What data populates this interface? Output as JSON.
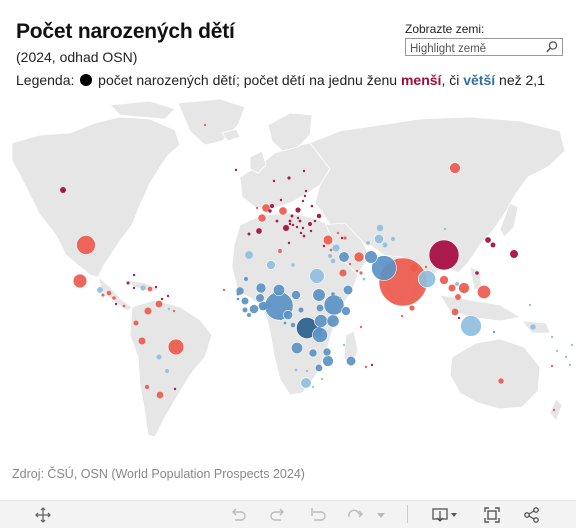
{
  "header": {
    "title": "Počet narozených dětí",
    "subtitle": "(2024, odhad OSN)",
    "legend_prefix": "Legenda:",
    "legend_text1": " počet narozených dětí; počet dětí na jednu ženu ",
    "legend_less": "menší",
    "legend_mid": ", či ",
    "legend_more": "větší",
    "legend_suffix": " než 2,1"
  },
  "search": {
    "label": "Zobrazte zemi:",
    "placeholder": "Highlight země",
    "icon": "search-icon"
  },
  "source": "Zdroj: ČSÚ, OSN (World Population Prospects 2024)",
  "colors": {
    "land": "#e6e6e6",
    "borders": "#ffffff",
    "less_strong": "#a5093f",
    "less": "#ee5a4d",
    "less_light": "#f39a8f",
    "more_light": "#8fbfe0",
    "more": "#5b93c4",
    "more_strong": "#2b5f8f"
  },
  "bubbles": [
    {
      "country": "India",
      "births": 23000000,
      "fert": "less"
    },
    {
      "country": "China",
      "births": 9000000,
      "fert": "less_strong"
    },
    {
      "country": "Nigeria",
      "births": 8000000,
      "fert": "more"
    },
    {
      "country": "Pakistan",
      "births": 6200000,
      "fert": "more"
    },
    {
      "country": "DR Congo",
      "births": 4500000,
      "fert": "more_strong"
    },
    {
      "country": "Indonesia",
      "births": 4300000,
      "fert": "more_light"
    },
    {
      "country": "Ethiopia",
      "births": 4000000,
      "fert": "more"
    },
    {
      "country": "USA",
      "births": 3600000,
      "fert": "less"
    },
    {
      "country": "Bangladesh",
      "births": 3000000,
      "fert": "more_light"
    },
    {
      "country": "Brazil",
      "births": 2500000,
      "fert": "less"
    },
    {
      "country": "Egypt",
      "births": 2200000,
      "fert": "more_light"
    },
    {
      "country": "Tanzania",
      "births": 2300000,
      "fert": "more"
    },
    {
      "country": "Afghanistan",
      "births": 1600000,
      "fert": "more"
    },
    {
      "country": "Philippines",
      "births": 1800000,
      "fert": "less"
    },
    {
      "country": "Mexico",
      "births": 1900000,
      "fert": "less"
    },
    {
      "country": "Sudan",
      "births": 1600000,
      "fert": "more"
    },
    {
      "country": "Uganda",
      "births": 1700000,
      "fert": "more"
    },
    {
      "country": "Kenya",
      "births": 1500000,
      "fert": "more"
    },
    {
      "country": "Niger",
      "births": 1300000,
      "fert": "more"
    },
    {
      "country": "Angola",
      "births": 1300000,
      "fert": "more"
    },
    {
      "country": "Vietnam",
      "births": 1200000,
      "fert": "less"
    },
    {
      "country": "Russia",
      "births": 1200000,
      "fert": "less"
    },
    {
      "country": "Mozambique",
      "births": 1200000,
      "fert": "more"
    },
    {
      "country": "Iran",
      "births": 1000000,
      "fert": "less"
    },
    {
      "country": "Iraq",
      "births": 1100000,
      "fert": "more"
    },
    {
      "country": "Mali",
      "births": 1000000,
      "fert": "more"
    },
    {
      "country": "Turkey",
      "births": 950000,
      "fert": "less"
    },
    {
      "country": "Chad",
      "births": 850000,
      "fert": "more"
    },
    {
      "country": "Japan",
      "births": 730000,
      "fert": "less_strong"
    },
    {
      "country": "Ghana",
      "births": 860000,
      "fert": "more"
    },
    {
      "country": "Madagascar",
      "births": 900000,
      "fert": "more"
    },
    {
      "country": "Yemen",
      "births": 900000,
      "fert": "more"
    },
    {
      "country": "Cameroon",
      "births": 880000,
      "fert": "more"
    },
    {
      "country": "Colombia",
      "births": 500000,
      "fert": "less"
    },
    {
      "country": "Algeria",
      "births": 800000,
      "fert": "more_light"
    },
    {
      "country": "Burkina Faso",
      "births": 750000,
      "fert": "more"
    },
    {
      "country": "Côte d'Ivoire",
      "births": 850000,
      "fert": "more"
    },
    {
      "country": "Morocco",
      "births": 600000,
      "fert": "more_light"
    },
    {
      "country": "Uzbekistan",
      "births": 900000,
      "fert": "more_light"
    },
    {
      "country": "Argentina",
      "births": 450000,
      "fert": "less"
    },
    {
      "country": "France",
      "births": 670000,
      "fert": "less"
    },
    {
      "country": "Germany",
      "births": 690000,
      "fert": "less"
    },
    {
      "country": "UK",
      "births": 680000,
      "fert": "less"
    },
    {
      "country": "Peru",
      "births": 480000,
      "fert": "less"
    },
    {
      "country": "Malawi",
      "births": 650000,
      "fert": "more"
    },
    {
      "country": "Zambia",
      "births": 650000,
      "fert": "more"
    },
    {
      "country": "Somalia",
      "births": 800000,
      "fert": "more"
    },
    {
      "country": "Saudi Arabia",
      "births": 500000,
      "fert": "less"
    },
    {
      "country": "Thailand",
      "births": 500000,
      "fert": "less"
    },
    {
      "country": "Myanmar",
      "births": 800000,
      "fert": "less"
    },
    {
      "country": "Kazakhstan",
      "births": 400000,
      "fert": "more_light"
    },
    {
      "country": "Venezuela",
      "births": 450000,
      "fert": "less"
    },
    {
      "country": "South Africa",
      "births": 1100000,
      "fert": "more_light"
    },
    {
      "country": "Australia",
      "births": 290000,
      "fert": "less"
    },
    {
      "country": "Canada",
      "births": 350000,
      "fert": "less_strong"
    },
    {
      "country": "Senegal",
      "births": 550000,
      "fert": "more"
    },
    {
      "country": "Guinea",
      "births": 500000,
      "fert": "more"
    },
    {
      "country": "Zimbabwe",
      "births": 450000,
      "fert": "more"
    },
    {
      "country": "Syria",
      "births": 500000,
      "fert": "more_light"
    },
    {
      "country": "Nepal",
      "births": 550000,
      "fert": "less"
    },
    {
      "country": "Malaysia",
      "births": 450000,
      "fert": "less"
    },
    {
      "country": "South Korea",
      "births": 240000,
      "fert": "less_strong"
    },
    {
      "country": "Italy",
      "births": 380000,
      "fert": "less_strong"
    },
    {
      "country": "Spain",
      "births": 320000,
      "fert": "less_strong"
    },
    {
      "country": "Poland",
      "births": 270000,
      "fert": "less_strong"
    },
    {
      "country": "Ukraine",
      "births": 200000,
      "fert": "less_strong"
    },
    {
      "country": "Chile",
      "births": 180000,
      "fert": "less"
    },
    {
      "country": "Ecuador",
      "births": 250000,
      "fert": "less"
    },
    {
      "country": "Guatemala",
      "births": 350000,
      "fert": "more_light"
    },
    {
      "country": "Haiti",
      "births": 270000,
      "fert": "more_light"
    },
    {
      "country": "Cuba",
      "births": 90000,
      "fert": "less_strong"
    },
    {
      "country": "Dominican Rep.",
      "births": 200000,
      "fert": "less"
    },
    {
      "country": "Bolivia",
      "births": 250000,
      "fert": "more_light"
    },
    {
      "country": "Paraguay",
      "births": 150000,
      "fert": "more_light"
    },
    {
      "country": "Tunisia",
      "births": 150000,
      "fert": "less"
    },
    {
      "country": "Libya",
      "births": 120000,
      "fert": "more_light"
    },
    {
      "country": "Jordan",
      "births": 200000,
      "fert": "more_light"
    },
    {
      "country": "Israel",
      "births": 180000,
      "fert": "more_light"
    },
    {
      "country": "Cambodia",
      "births": 350000,
      "fert": "less"
    },
    {
      "country": "Papua New Guinea",
      "births": 300000,
      "fert": "more_light"
    },
    {
      "country": "Sri Lanka",
      "births": 270000,
      "fert": "less"
    },
    {
      "country": "Mongolia",
      "births": 60000,
      "fert": "more_light"
    },
    {
      "country": "North Korea",
      "births": 330000,
      "fert": "less_strong"
    },
    {
      "country": "Taiwan",
      "births": 130000,
      "fert": "less_strong"
    },
    {
      "country": "New Zealand",
      "births": 60000,
      "fert": "less"
    },
    {
      "country": "Turkmenistan",
      "births": 140000,
      "fert": "more_light"
    },
    {
      "country": "Tajikistan",
      "births": 240000,
      "fert": "more_light"
    },
    {
      "country": "Kyrgyzstan",
      "births": 150000,
      "fert": "more_light"
    },
    {
      "country": "Oman",
      "births": 80000,
      "fert": "more_light"
    },
    {
      "country": "UAE",
      "births": 100000,
      "fert": "less"
    },
    {
      "country": "Eritrea",
      "births": 120000,
      "fert": "more"
    },
    {
      "country": "Benin",
      "births": 470000,
      "fert": "more"
    },
    {
      "country": "Togo",
      "births": 280000,
      "fert": "more"
    },
    {
      "country": "Sierra Leone",
      "births": 250000,
      "fert": "more"
    },
    {
      "country": "Liberia",
      "births": 170000,
      "fert": "more"
    },
    {
      "country": "Rwanda",
      "births": 380000,
      "fert": "more"
    },
    {
      "country": "Burundi",
      "births": 400000,
      "fert": "more"
    },
    {
      "country": "South Sudan",
      "births": 450000,
      "fert": "more"
    },
    {
      "country": "CAR",
      "births": 250000,
      "fert": "more"
    },
    {
      "country": "Congo",
      "births": 200000,
      "fert": "more"
    },
    {
      "country": "Gabon",
      "births": 70000,
      "fert": "more"
    },
    {
      "country": "Namibia",
      "births": 70000,
      "fert": "more_light"
    },
    {
      "country": "Botswana",
      "births": 60000,
      "fert": "more_light"
    },
    {
      "country": "Mauritania",
      "births": 150000,
      "fert": "more"
    },
    {
      "country": "Lesotho",
      "births": 50000,
      "fert": "more_light"
    },
    {
      "country": "Netherlands",
      "births": 165000,
      "fert": "less_strong"
    },
    {
      "country": "Belgium",
      "births": 115000,
      "fert": "less_strong"
    },
    {
      "country": "Czechia",
      "births": 85000,
      "fert": "less_strong"
    },
    {
      "country": "Romania",
      "births": 150000,
      "fert": "less_strong"
    },
    {
      "country": "Hungary",
      "births": 75000,
      "fert": "less_strong"
    },
    {
      "country": "Sweden",
      "births": 100000,
      "fert": "less_strong"
    },
    {
      "country": "Norway",
      "births": 52000,
      "fert": "less_strong"
    },
    {
      "country": "Finland",
      "births": 44000,
      "fert": "less_strong"
    },
    {
      "country": "Portugal",
      "births": 83000,
      "fert": "less_strong"
    },
    {
      "country": "Greece",
      "births": 70000,
      "fert": "less_strong"
    },
    {
      "country": "Belarus",
      "births": 65000,
      "fert": "less_strong"
    },
    {
      "country": "Austria",
      "births": 77000,
      "fert": "less_strong"
    },
    {
      "country": "Switzerland",
      "births": 80000,
      "fert": "less_strong"
    },
    {
      "country": "Serbia",
      "births": 60000,
      "fert": "less_strong"
    },
    {
      "country": "Bulgaria",
      "births": 55000,
      "fert": "less_strong"
    },
    {
      "country": "Ireland",
      "births": 55000,
      "fert": "less"
    },
    {
      "country": "Denmark",
      "births": 57000,
      "fert": "less_strong"
    },
    {
      "country": "Iceland",
      "births": 4500,
      "fert": "less_strong"
    },
    {
      "country": "Georgia",
      "births": 40000,
      "fert": "less"
    },
    {
      "country": "Azerbaijan",
      "births": 110000,
      "fert": "less"
    },
    {
      "country": "Honduras",
      "births": 200000,
      "fert": "less"
    },
    {
      "country": "Nicaragua",
      "births": 130000,
      "fert": "less"
    },
    {
      "country": "El Salvador",
      "births": 100000,
      "fert": "less"
    },
    {
      "country": "Costa Rica",
      "births": 55000,
      "fert": "less_strong"
    },
    {
      "country": "Panama",
      "births": 75000,
      "fert": "less"
    },
    {
      "country": "Jamaica",
      "births": 30000,
      "fert": "less_strong"
    },
    {
      "country": "Puerto Rico",
      "births": 18000,
      "fert": "less_strong"
    },
    {
      "country": "Uruguay",
      "births": 33000,
      "fert": "less_strong"
    },
    {
      "country": "Laos",
      "births": 160000,
      "fert": "more_light"
    },
    {
      "country": "Bhutan",
      "births": 10000,
      "fert": "less"
    },
    {
      "country": "Timor-Leste",
      "births": 40000,
      "fert": "more"
    },
    {
      "country": "Solomon Islands",
      "births": 20000,
      "fert": "more_light"
    },
    {
      "country": "Fiji",
      "births": 18000,
      "fert": "more_light"
    },
    {
      "country": "Djibouti",
      "births": 25000,
      "fert": "more_light"
    },
    {
      "country": "Gambia",
      "births": 80000,
      "fert": "more"
    },
    {
      "country": "Guinea-Bissau",
      "births": 70000,
      "fert": "more"
    },
    {
      "country": "Equatorial Guinea",
      "births": 50000,
      "fert": "more"
    },
    {
      "country": "Comoros",
      "births": 25000,
      "fert": "more_light"
    },
    {
      "country": "Mauritius",
      "births": 11000,
      "fert": "less_strong"
    },
    {
      "country": "Eswatini",
      "births": 30000,
      "fert": "more_light"
    },
    {
      "country": "Cabo Verde",
      "births": 8000,
      "fert": "less"
    },
    {
      "country": "Trinidad",
      "births": 15000,
      "fert": "less_strong"
    },
    {
      "country": "Bahamas",
      "births": 4000,
      "fert": "less_strong"
    },
    {
      "country": "Barbados",
      "births": 2500,
      "fert": "less_strong"
    },
    {
      "country": "Guyana",
      "births": 16000,
      "fert": "more_light"
    },
    {
      "country": "Suriname",
      "births": 10000,
      "fert": "less"
    },
    {
      "country": "Singapore",
      "births": 30000,
      "fert": "less_strong"
    },
    {
      "country": "Lebanon",
      "births": 70000,
      "fert": "less"
    },
    {
      "country": "Kuwait",
      "births": 50000,
      "fert": "less"
    },
    {
      "country": "Qatar",
      "births": 25000,
      "fert": "less"
    },
    {
      "country": "Armenia",
      "births": 36000,
      "fert": "less_strong"
    },
    {
      "country": "Moldova",
      "births": 25000,
      "fert": "less_strong"
    },
    {
      "country": "Lithuania",
      "births": 20000,
      "fert": "less_strong"
    },
    {
      "country": "Latvia",
      "births": 13000,
      "fert": "less_strong"
    },
    {
      "country": "Estonia",
      "births": 10000,
      "fert": "less_strong"
    },
    {
      "country": "Slovakia",
      "births": 50000,
      "fert": "less_strong"
    },
    {
      "country": "Croatia",
      "births": 33000,
      "fert": "less_strong"
    },
    {
      "country": "Bosnia",
      "births": 27000,
      "fert": "less_strong"
    },
    {
      "country": "Albania",
      "births": 24000,
      "fert": "less_strong"
    },
    {
      "country": "Cyprus",
      "births": 10000,
      "fert": "less_strong"
    },
    {
      "country": "Malta",
      "births": 4000,
      "fert": "less_strong"
    },
    {
      "country": "Slovenia",
      "births": 17000,
      "fert": "less_strong"
    },
    {
      "country": "Vanuatu",
      "births": 9000,
      "fert": "more_light"
    },
    {
      "country": "New Caledonia",
      "births": 4000,
      "fert": "less"
    },
    {
      "country": "Réunion",
      "births": 14000,
      "fert": "less"
    },
    {
      "country": "Greenland",
      "births": 800,
      "fert": "less"
    },
    {
      "country": "Hawaii",
      "births": 1000,
      "fert": "less_strong"
    },
    {
      "country": "Samoa",
      "births": 5000,
      "fert": "more_light"
    },
    {
      "country": "Tonga",
      "births": 2500,
      "fert": "more_light"
    },
    {
      "country": "Micronesia",
      "births": 2000,
      "fert": "more_light"
    },
    {
      "country": "Seychelles",
      "births": 1500,
      "fert": "less"
    },
    {
      "country": "Maldives",
      "births": 7000,
      "fert": "less"
    }
  ],
  "toolbar": {
    "items": [
      "move-icon",
      "undo-icon",
      "redo-icon",
      "revert-icon",
      "forward-icon",
      "dropdown-icon",
      "download-icon",
      "fullscreen-icon",
      "share-icon"
    ]
  }
}
